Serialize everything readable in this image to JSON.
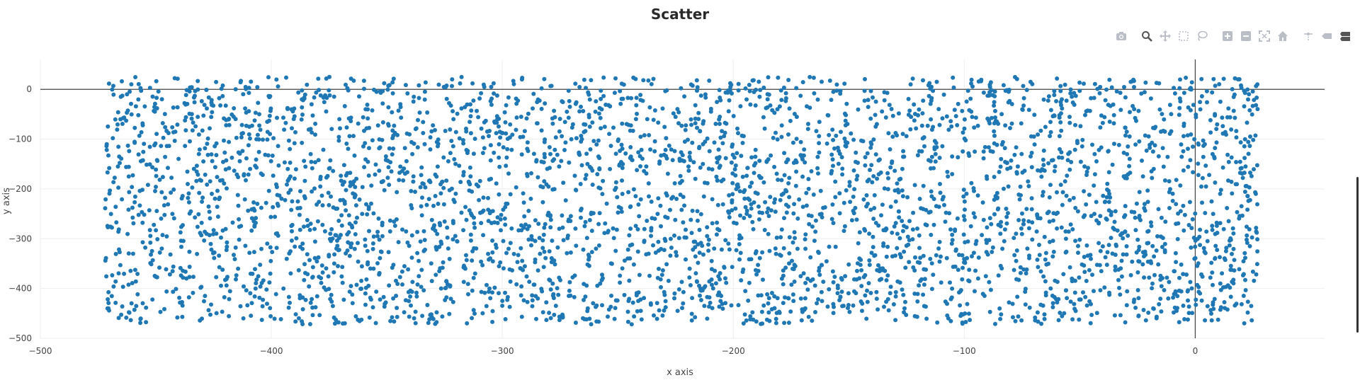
{
  "chart_data": {
    "type": "scatter",
    "title": "Scatter",
    "xlabel": "x axis",
    "ylabel": "y axis",
    "xlim": [
      -500,
      56
    ],
    "ylim": [
      -500,
      60
    ],
    "x_ticks": [
      "−500",
      "−400",
      "−300",
      "−200",
      "−100",
      "0"
    ],
    "x_tick_values": [
      -500,
      -400,
      -300,
      -200,
      -100,
      0
    ],
    "y_ticks": [
      "0",
      "−100",
      "−200",
      "−300",
      "−400",
      "−500"
    ],
    "y_tick_values": [
      0,
      -100,
      -200,
      -300,
      -400,
      -500
    ],
    "grid": true,
    "zero_lines": true,
    "point_color": "#1f77b4",
    "series": [
      {
        "description": "Approximately 4000 points uniformly distributed",
        "n_points": 4000,
        "x_range": [
          -472,
          27
        ],
        "y_range": [
          -472,
          25
        ]
      }
    ]
  },
  "modebar": {
    "icons": [
      "camera-icon",
      "zoom-icon",
      "pan-icon",
      "box-select-icon",
      "lasso-select-icon",
      "zoom-in-icon",
      "zoom-out-icon",
      "autoscale-icon",
      "reset-axes-icon",
      "spike-lines-icon",
      "hover-closest-icon",
      "hover-compare-icon",
      "plotly-logo-icon"
    ]
  }
}
